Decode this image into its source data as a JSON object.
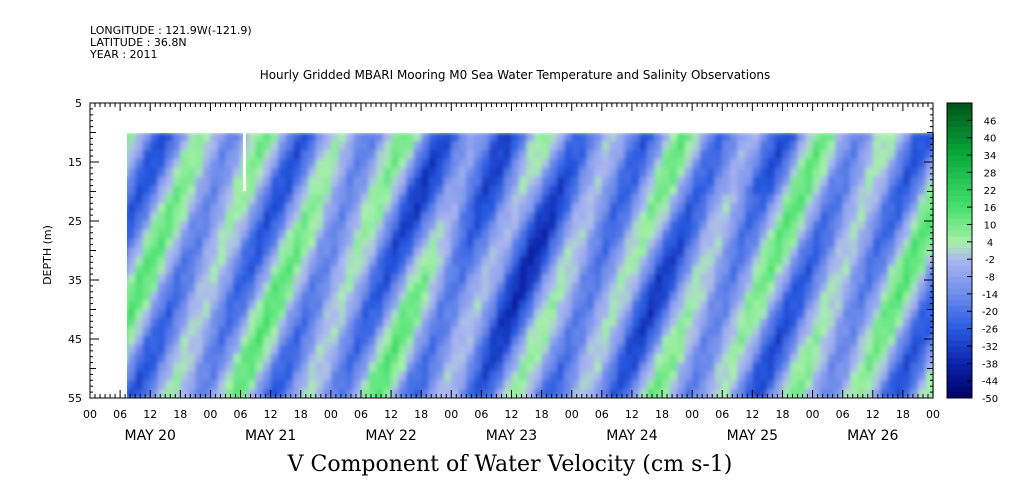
{
  "header": {
    "longitude": "LONGITUDE : 121.9W(-121.9)",
    "latitude": "LATITUDE : 36.8N",
    "year": "YEAR : 2011"
  },
  "chart_data": {
    "type": "heatmap",
    "title": "Hourly Gridded MBARI Mooring M0 Sea Water Temperature and Salinity Observations",
    "bottom_title": "V Component of Water Velocity (cm s-1)",
    "ylabel": "DEPTH (m)",
    "ylim": [
      55,
      5
    ],
    "y_ticks": [
      "5",
      "15",
      "25",
      "35",
      "45",
      "55"
    ],
    "x_hour_ticks": [
      "00",
      "06",
      "12",
      "18",
      "00",
      "06",
      "12",
      "18",
      "00",
      "06",
      "12",
      "18",
      "00",
      "06",
      "12",
      "18",
      "00",
      "06",
      "12",
      "18",
      "00",
      "06",
      "12",
      "18",
      "00",
      "06",
      "12",
      "18",
      "00"
    ],
    "x_day_labels": [
      "MAY 20",
      "MAY 21",
      "MAY 22",
      "MAY 23",
      "MAY 24",
      "MAY 25",
      "MAY 26"
    ],
    "data_depth_range": [
      10,
      55
    ],
    "colorbar": {
      "labels": [
        "46",
        "40",
        "34",
        "28",
        "22",
        "16",
        "10",
        "4",
        "-2",
        "-8",
        "-14",
        "-20",
        "-26",
        "-32",
        "-38",
        "-44",
        "-50"
      ],
      "range": [
        -50,
        52
      ]
    },
    "colors": {
      "deep_negative": "#000066",
      "moderate_negative": "#2f5fe0",
      "weak_negative": "#a8b4ee",
      "weak_positive": "#a6f2a6",
      "strong_positive": "#00591a"
    }
  }
}
